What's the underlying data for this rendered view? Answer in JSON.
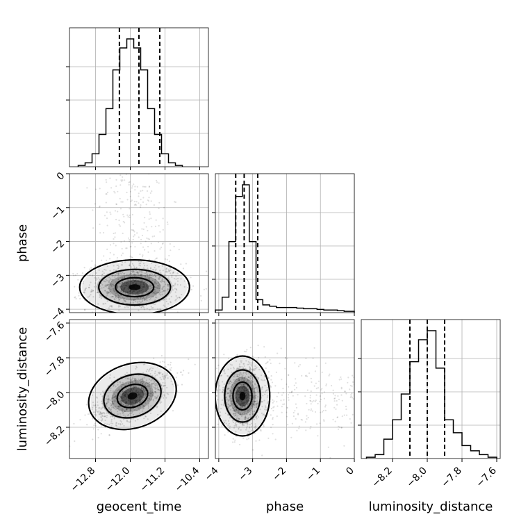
{
  "chart_data": {
    "type": "corner",
    "parameters": [
      "geocent_time",
      "phase",
      "luminosity_distance"
    ],
    "axes": {
      "geocent_time": {
        "label": "geocent_time",
        "range": [
          -13.4,
          -10.2
        ],
        "ticks": [
          -12.8,
          -12.0,
          -11.2,
          -10.4
        ],
        "tick_labels": [
          "−12.8",
          "−12.0",
          "−11.2",
          "−10.4"
        ]
      },
      "phase": {
        "label": "phase",
        "range": [
          -4.1,
          0.0
        ],
        "ticks": [
          -4,
          -3,
          -2,
          -1,
          0
        ],
        "tick_labels": [
          "−4",
          "−3",
          "−2",
          "−1",
          "0"
        ]
      },
      "luminosity_distance": {
        "label": "luminosity_distance",
        "range": [
          -8.38,
          -7.58
        ],
        "ticks": [
          -8.2,
          -8.0,
          -7.8,
          -7.6
        ],
        "tick_labels": [
          "−8.2",
          "−8.0",
          "−7.8",
          "−7.6"
        ]
      }
    },
    "histograms": {
      "geocent_time": {
        "bin_edges": [
          -13.2,
          -13.04,
          -12.88,
          -12.72,
          -12.56,
          -12.4,
          -12.24,
          -12.08,
          -11.92,
          -11.76,
          -11.6,
          -11.44,
          -11.28,
          -11.12,
          -10.96,
          -10.8
        ],
        "counts": [
          0.01,
          0.03,
          0.1,
          0.25,
          0.45,
          0.75,
          0.92,
          0.99,
          0.92,
          0.75,
          0.45,
          0.25,
          0.1,
          0.03,
          0.01
        ],
        "quantiles": [
          -12.25,
          -11.8,
          -11.32
        ]
      },
      "phase": {
        "bin_edges": [
          -4.1,
          -3.9,
          -3.7,
          -3.5,
          -3.3,
          -3.1,
          -2.9,
          -2.7,
          -2.5,
          -2.3,
          -2.1,
          -1.9,
          -1.7,
          -1.5,
          -1.3,
          -1.1,
          -0.9,
          -0.7,
          -0.5,
          -0.3,
          -0.1,
          0.0
        ],
        "counts": [
          0.02,
          0.12,
          0.55,
          0.9,
          0.99,
          0.55,
          0.1,
          0.06,
          0.05,
          0.04,
          0.04,
          0.04,
          0.035,
          0.03,
          0.03,
          0.025,
          0.02,
          0.02,
          0.015,
          0.01,
          0.01
        ],
        "quantiles": [
          -3.5,
          -3.25,
          -2.85
        ]
      },
      "luminosity_distance": {
        "bin_edges": [
          -8.35,
          -8.3,
          -8.25,
          -8.2,
          -8.15,
          -8.1,
          -8.05,
          -8.0,
          -7.95,
          -7.9,
          -7.85,
          -7.8,
          -7.75,
          -7.7,
          -7.65,
          -7.6
        ],
        "counts": [
          0.01,
          0.03,
          0.15,
          0.3,
          0.5,
          0.75,
          0.92,
          0.99,
          0.7,
          0.3,
          0.2,
          0.1,
          0.06,
          0.03,
          0.01
        ],
        "quantiles": [
          -8.1,
          -8.0,
          -7.9
        ]
      }
    },
    "pairs": [
      {
        "x": "geocent_time",
        "y": "phase",
        "center": [
          -11.9,
          -3.35
        ],
        "spread": [
          0.55,
          0.35
        ],
        "corr": 0.0,
        "tail": true
      },
      {
        "x": "geocent_time",
        "y": "luminosity_distance",
        "center": [
          -11.95,
          -8.02
        ],
        "spread": [
          0.45,
          0.08
        ],
        "corr": 0.6,
        "tail": false
      },
      {
        "x": "phase",
        "y": "luminosity_distance",
        "center": [
          -3.3,
          -8.02
        ],
        "spread": [
          0.35,
          0.1
        ],
        "corr": 0.0,
        "tail": true
      }
    ],
    "grid": true
  }
}
